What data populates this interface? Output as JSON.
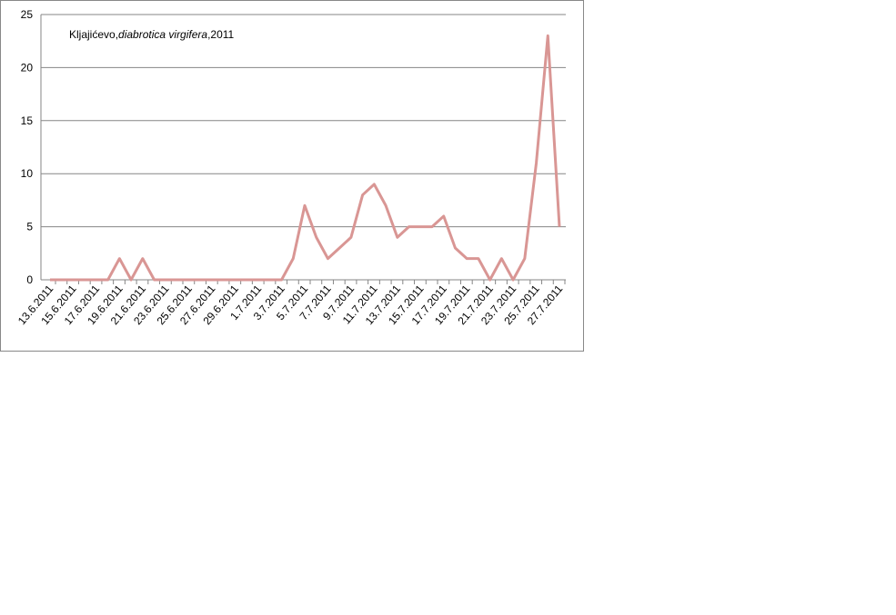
{
  "chart_data": {
    "type": "line",
    "title_parts": [
      "Kljajićevo,",
      "diabrotica virgifera",
      ",2011"
    ],
    "categories": [
      "13.6.2011",
      null,
      "15.6.2011",
      null,
      "17.6.2011",
      null,
      "19.6.2011",
      null,
      "21.6.2011",
      null,
      "23.6.2011",
      null,
      "25.6.2011",
      null,
      "27.6.2011",
      null,
      "29.6.2011",
      null,
      "1.7.2011",
      null,
      "3.7.2011",
      null,
      "5.7.2011",
      null,
      "7.7.2011",
      null,
      "9.7.2011",
      null,
      "11.7.2011",
      null,
      "13.7.2011",
      null,
      "15.7.2011",
      null,
      "17.7.2011",
      null,
      "19.7.2011",
      null,
      "21.7.2011",
      null,
      "23.7.2011",
      null,
      "25.7.2011",
      null,
      "27.7.2011"
    ],
    "series": [
      {
        "color": "#d99694",
        "values": [
          0,
          0,
          0,
          0,
          0,
          0,
          2,
          0,
          2,
          0,
          0,
          0,
          0,
          0,
          0,
          0,
          0,
          0,
          0,
          0,
          0,
          2,
          7,
          4,
          2,
          3,
          4,
          8,
          9,
          7,
          4,
          5,
          5,
          5,
          6,
          3,
          2,
          2,
          0,
          2,
          0,
          2,
          11,
          23,
          5
        ]
      }
    ],
    "ylim": [
      0,
      25
    ],
    "yticks": [
      0,
      5,
      10,
      15,
      20,
      25
    ],
    "grid": true
  }
}
